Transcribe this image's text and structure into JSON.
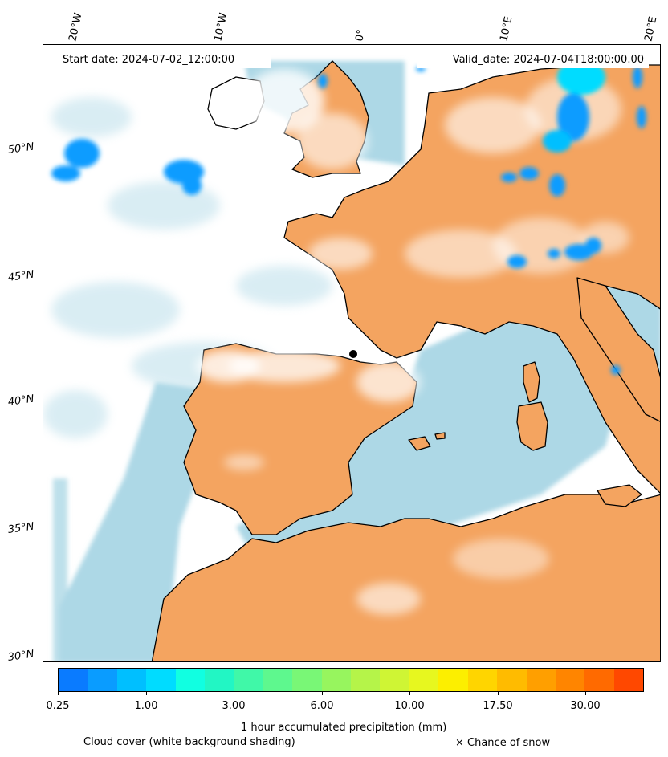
{
  "header": {
    "start_date": "Start date: 2024-07-02_12:00:00",
    "valid_date": "Valid_date: 2024-07-04T18:00:00.00"
  },
  "map": {
    "longitude_labels": [
      "20°W",
      "10°W",
      "0°",
      "10°E",
      "20°E"
    ],
    "latitude_labels": [
      "50°N",
      "45°N",
      "40°N",
      "35°N",
      "30°N"
    ],
    "colors": {
      "land": "#f4a460",
      "sea_cloud": "#add8e6",
      "cloud": "#ffffff",
      "coastline": "#000000"
    }
  },
  "colorbar": {
    "colors": [
      "#0a7bff",
      "#0a9cff",
      "#00bfff",
      "#00dcff",
      "#11ffe1",
      "#22f6c4",
      "#40f8a8",
      "#5ef88e",
      "#79f776",
      "#97f55e",
      "#b5f449",
      "#cff534",
      "#e7f71f",
      "#fcef00",
      "#ffd500",
      "#ffbb00",
      "#ff9f00",
      "#ff8500",
      "#ff6a00",
      "#ff4800"
    ],
    "tick_labels": [
      "0.25",
      "1.00",
      "3.00",
      "6.00",
      "10.00",
      "17.50",
      "30.00"
    ],
    "label": "1 hour accumulated precipitation (mm)"
  },
  "legend": {
    "cloud_cover": "Cloud cover (white background shading)",
    "snow": "× Chance of snow"
  }
}
